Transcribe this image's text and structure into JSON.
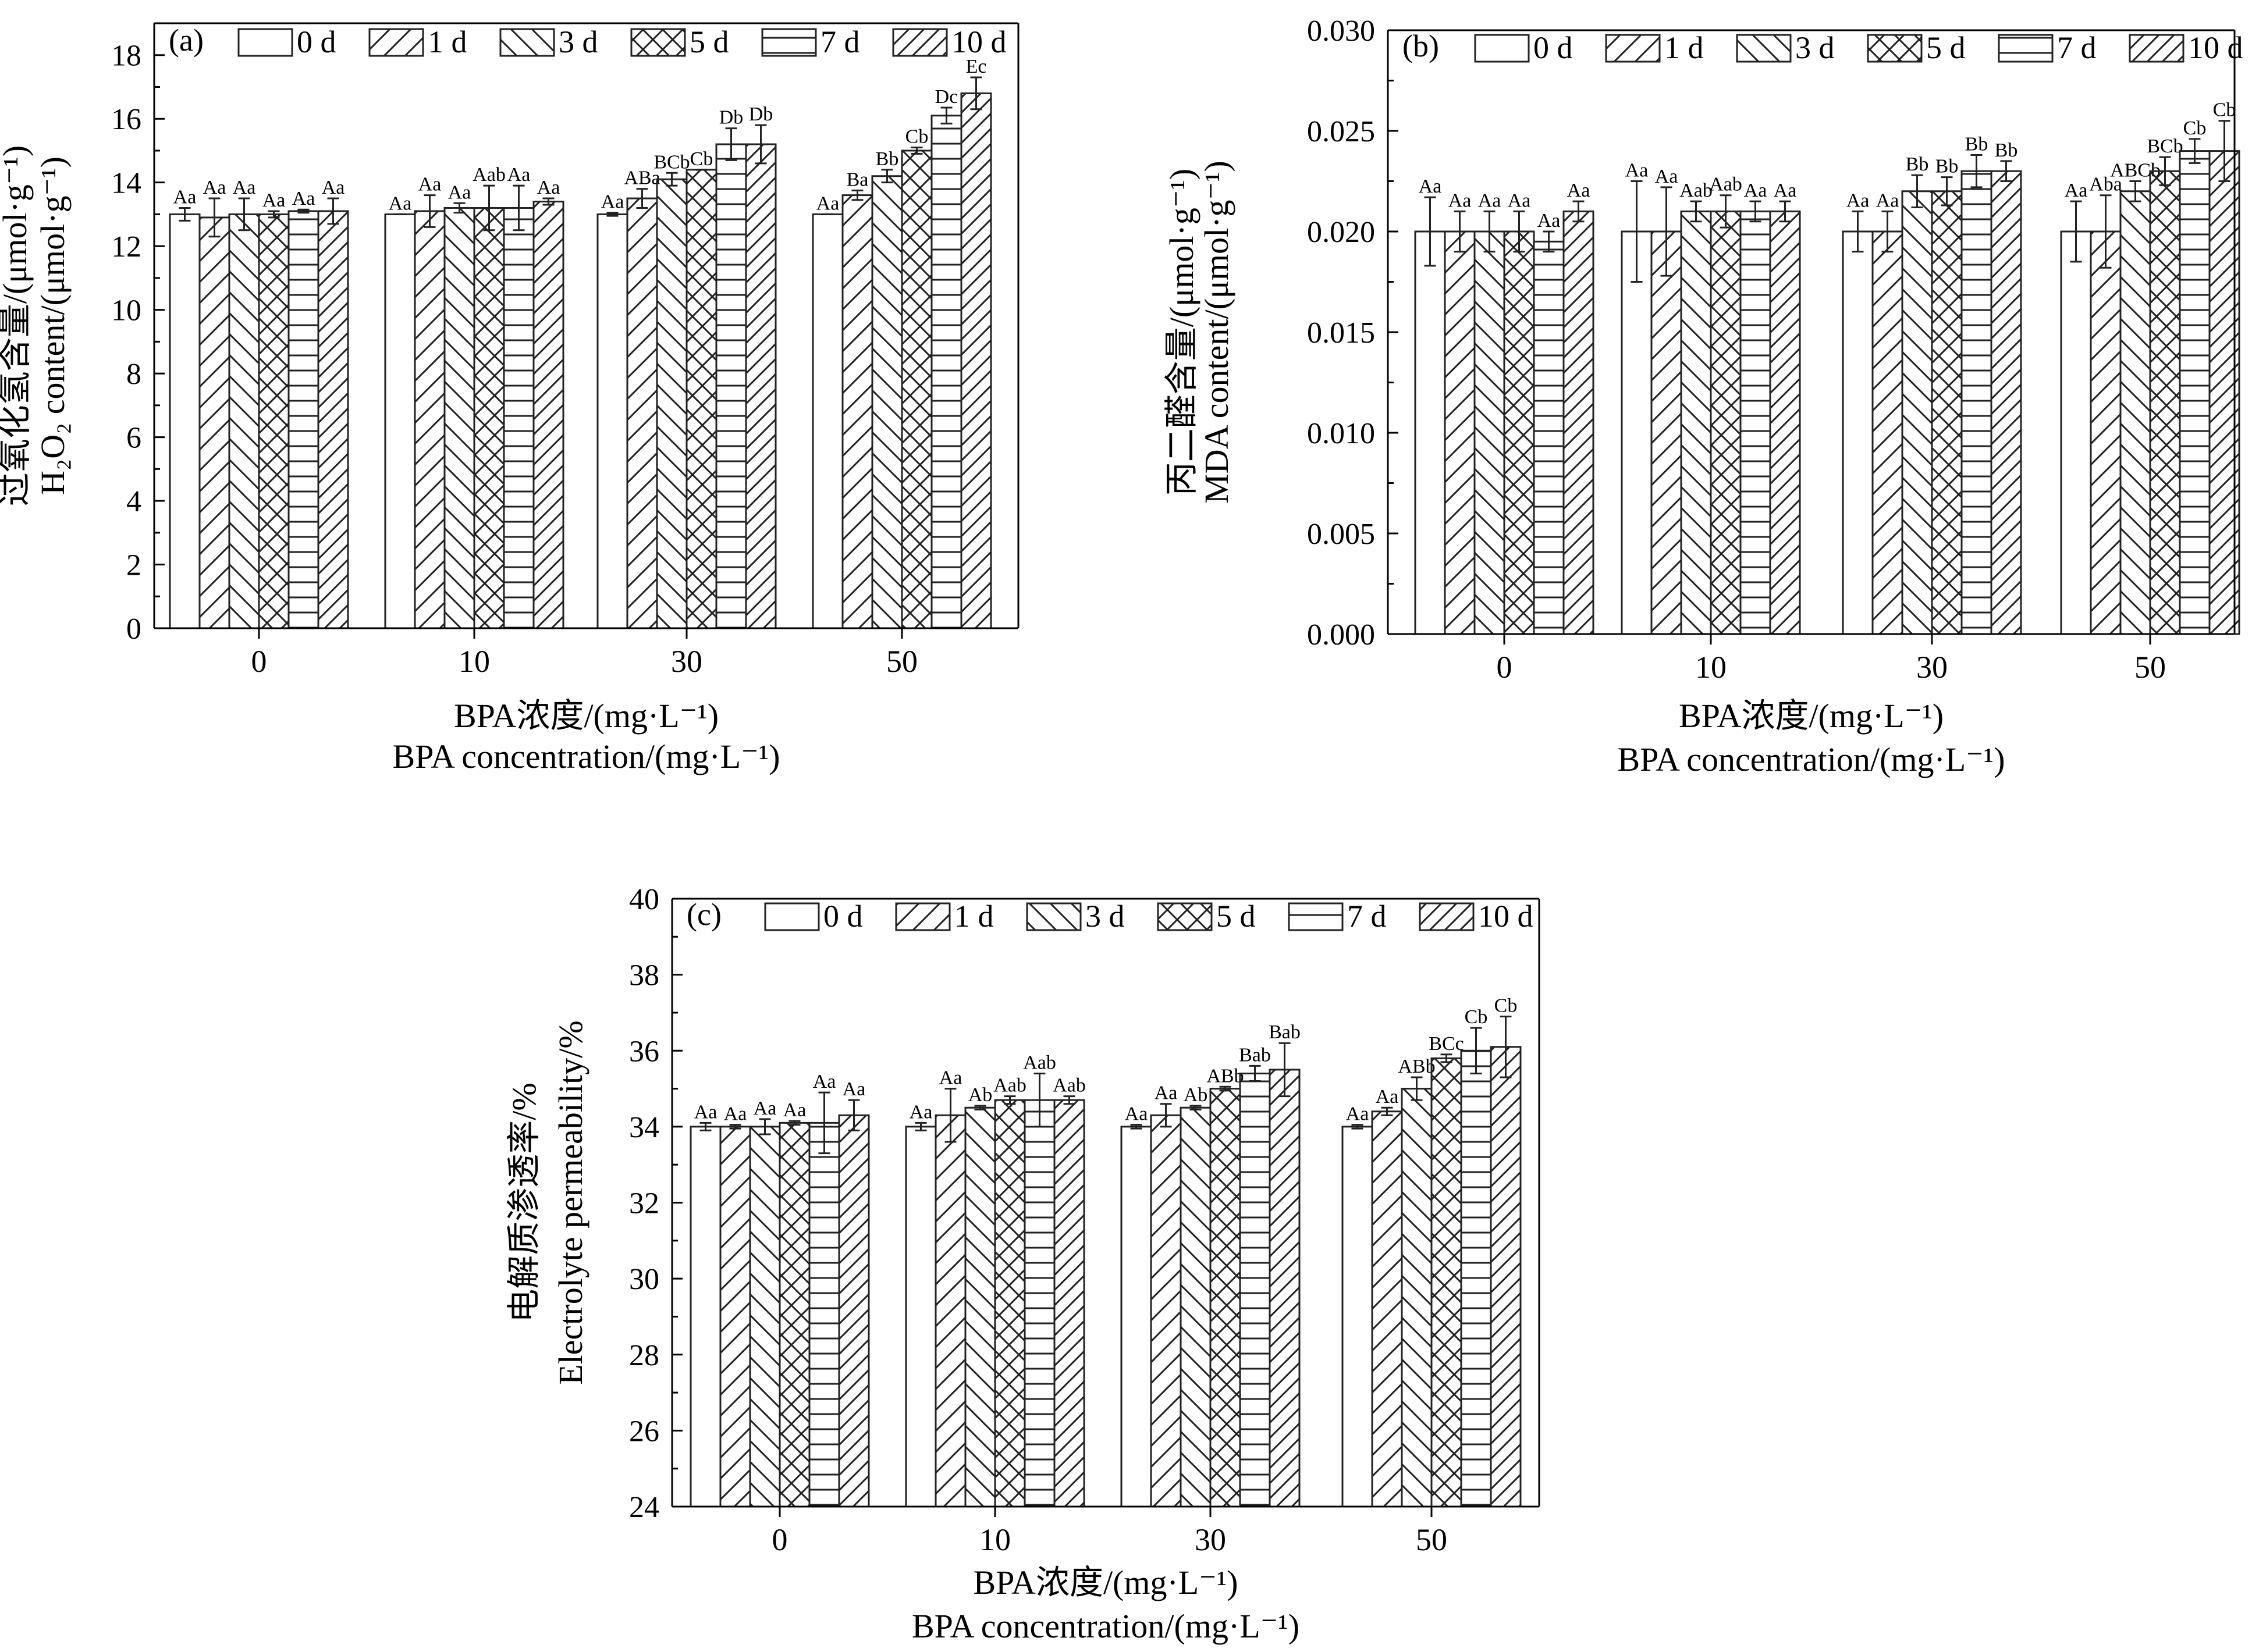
{
  "chart_data": [
    {
      "type": "bar",
      "panel_label": "(a)",
      "ylabel_cn": "过氧化氢含量/(μmol·g⁻¹)",
      "ylabel_en": "H₂O₂ content/(μmol·g⁻¹)",
      "xlabel_cn": "BPA浓度/(mg·L⁻¹)",
      "xlabel_en": "BPA concentration/(mg·L⁻¹)",
      "categories": [
        "0",
        "10",
        "30",
        "50"
      ],
      "ylim": [
        0,
        19
      ],
      "yticks": [
        "0",
        "2",
        "4",
        "6",
        "8",
        "10",
        "12",
        "14",
        "16",
        "18"
      ],
      "ytick_values": [
        0,
        2,
        4,
        6,
        8,
        10,
        12,
        14,
        16,
        18
      ],
      "legend_position": "top",
      "series": [
        {
          "name": "0 d",
          "values": [
            13.0,
            13.0,
            13.0,
            13.0
          ],
          "errors": [
            0.2,
            0.0,
            0.05,
            0.0
          ],
          "labels": [
            "Aa",
            "Aa",
            "Aa",
            "Aa"
          ]
        },
        {
          "name": "1 d",
          "values": [
            12.9,
            13.1,
            13.5,
            13.6
          ],
          "errors": [
            0.6,
            0.5,
            0.3,
            0.15
          ],
          "labels": [
            "Aa",
            "Aa",
            "ABa",
            "Ba"
          ]
        },
        {
          "name": "3 d",
          "values": [
            13.0,
            13.2,
            14.1,
            14.2
          ],
          "errors": [
            0.5,
            0.15,
            0.2,
            0.2
          ],
          "labels": [
            "Aa",
            "Aa",
            "BCb",
            "Bb"
          ]
        },
        {
          "name": "5 d",
          "values": [
            13.0,
            13.2,
            14.4,
            15.0
          ],
          "errors": [
            0.1,
            0.7,
            0.0,
            0.1
          ],
          "labels": [
            "Aa",
            "Aab",
            "Cb",
            "Cb"
          ]
        },
        {
          "name": "7 d",
          "values": [
            13.1,
            13.2,
            15.2,
            16.1
          ],
          "errors": [
            0.05,
            0.7,
            0.5,
            0.25
          ],
          "labels": [
            "Aa",
            "Aa",
            "Db",
            "Dc"
          ]
        },
        {
          "name": "10 d",
          "values": [
            13.1,
            13.4,
            15.2,
            16.8
          ],
          "errors": [
            0.4,
            0.1,
            0.6,
            0.5
          ],
          "labels": [
            "Aa",
            "Aa",
            "Db",
            "Ec"
          ]
        }
      ]
    },
    {
      "type": "bar",
      "panel_label": "(b)",
      "ylabel_cn": "丙二醛含量/(μmol·g⁻¹)",
      "ylabel_en": "MDA content/(μmol·g⁻¹)",
      "xlabel_cn": "BPA浓度/(mg·L⁻¹)",
      "xlabel_en": "BPA concentration/(mg·L⁻¹)",
      "categories": [
        "0",
        "10",
        "30",
        "50"
      ],
      "ylim": [
        0,
        0.03
      ],
      "yticks": [
        "0.000",
        "0.005",
        "0.010",
        "0.015",
        "0.020",
        "0.025",
        "0.030"
      ],
      "ytick_values": [
        0,
        0.005,
        0.01,
        0.015,
        0.02,
        0.025,
        0.03
      ],
      "legend_position": "top",
      "series": [
        {
          "name": "0 d",
          "values": [
            0.02,
            0.02,
            0.02,
            0.02
          ],
          "errors": [
            0.0017,
            0.0025,
            0.001,
            0.0015
          ],
          "labels": [
            "Aa",
            "Aa",
            "Aa",
            "Aa"
          ]
        },
        {
          "name": "1 d",
          "values": [
            0.02,
            0.02,
            0.02,
            0.02
          ],
          "errors": [
            0.001,
            0.0022,
            0.001,
            0.0018
          ],
          "labels": [
            "Aa",
            "Aa",
            "Aa",
            "Aba"
          ]
        },
        {
          "name": "3 d",
          "values": [
            0.02,
            0.021,
            0.022,
            0.022
          ],
          "errors": [
            0.001,
            0.0005,
            0.0008,
            0.0005
          ],
          "labels": [
            "Aa",
            "Aab",
            "Bb",
            "ABCb"
          ]
        },
        {
          "name": "5 d",
          "values": [
            0.02,
            0.021,
            0.022,
            0.023
          ],
          "errors": [
            0.001,
            0.0008,
            0.0007,
            0.0007
          ],
          "labels": [
            "Aa",
            "Aab",
            "Bb",
            "BCb"
          ]
        },
        {
          "name": "7 d",
          "values": [
            0.0195,
            0.021,
            0.023,
            0.024
          ],
          "errors": [
            0.0005,
            0.0005,
            0.0008,
            0.0006
          ],
          "labels": [
            "Aa",
            "Aa",
            "Bb",
            "Cb"
          ]
        },
        {
          "name": "10 d",
          "values": [
            0.021,
            0.021,
            0.023,
            0.024
          ],
          "errors": [
            0.0005,
            0.0005,
            0.0005,
            0.0015
          ],
          "labels": [
            "Aa",
            "Aa",
            "Bb",
            "Cb"
          ]
        }
      ]
    },
    {
      "type": "bar",
      "panel_label": "(c)",
      "ylabel_cn": "电解质渗透率/%",
      "ylabel_en": "Electrolyte permeability/%",
      "xlabel_cn": "BPA浓度/(mg·L⁻¹)",
      "xlabel_en": "BPA concentration/(mg·L⁻¹)",
      "categories": [
        "0",
        "10",
        "30",
        "50"
      ],
      "ylim": [
        24,
        40
      ],
      "yticks": [
        "24",
        "26",
        "28",
        "30",
        "32",
        "34",
        "36",
        "38",
        "40"
      ],
      "ytick_values": [
        24,
        26,
        28,
        30,
        32,
        34,
        36,
        38,
        40
      ],
      "legend_position": "top",
      "series": [
        {
          "name": "0 d",
          "values": [
            34.0,
            34.0,
            34.0,
            34.0
          ],
          "errors": [
            0.1,
            0.1,
            0.05,
            0.05
          ],
          "labels": [
            "Aa",
            "Aa",
            "Aa",
            "Aa"
          ]
        },
        {
          "name": "1 d",
          "values": [
            34.0,
            34.3,
            34.3,
            34.4
          ],
          "errors": [
            0.05,
            0.7,
            0.3,
            0.1
          ],
          "labels": [
            "Aa",
            "Aa",
            "Aa",
            "Aa"
          ]
        },
        {
          "name": "3 d",
          "values": [
            34.0,
            34.5,
            34.5,
            35.0
          ],
          "errors": [
            0.2,
            0.05,
            0.05,
            0.3
          ],
          "labels": [
            "Aa",
            "Ab",
            "Ab",
            "ABb"
          ]
        },
        {
          "name": "5 d",
          "values": [
            34.1,
            34.7,
            35.0,
            35.8
          ],
          "errors": [
            0.05,
            0.1,
            0.05,
            0.1
          ],
          "labels": [
            "Aa",
            "Aab",
            "ABb",
            "BCc"
          ]
        },
        {
          "name": "7 d",
          "values": [
            34.1,
            34.7,
            35.4,
            36.0
          ],
          "errors": [
            0.8,
            0.7,
            0.2,
            0.6
          ],
          "labels": [
            "Aa",
            "Aab",
            "Bab",
            "Cb"
          ]
        },
        {
          "name": "10 d",
          "values": [
            34.3,
            34.7,
            35.5,
            36.1
          ],
          "errors": [
            0.4,
            0.1,
            0.7,
            0.8
          ],
          "labels": [
            "Aa",
            "Aab",
            "Bab",
            "Cb"
          ]
        }
      ]
    }
  ]
}
